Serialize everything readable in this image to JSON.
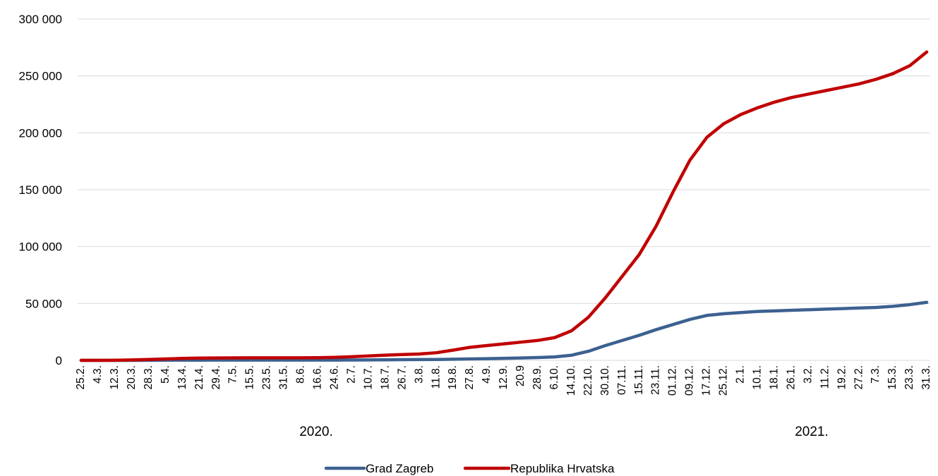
{
  "chart_data": {
    "type": "line",
    "title": "",
    "xlabel": "",
    "ylabel": "",
    "ylim": [
      0,
      300000
    ],
    "y_ticks": [
      0,
      50000,
      100000,
      150000,
      200000,
      250000,
      300000
    ],
    "y_tick_labels": [
      "0",
      "50 000",
      "100 000",
      "150 000",
      "200 000",
      "250 000",
      "300 000"
    ],
    "grid": "horizontal",
    "legend_position": "bottom-center",
    "x_tick_labels": [
      "25.2.",
      "4.3.",
      "12.3.",
      "20.3.",
      "28.3.",
      "5.4.",
      "13.4.",
      "21.4.",
      "29.4.",
      "7.5.",
      "15.5.",
      "23.5.",
      "31.5.",
      "8.6.",
      "16.6.",
      "24.6.",
      "2.7.",
      "10.7.",
      "18.7.",
      "26.7.",
      "3.8.",
      "11.8.",
      "19.8.",
      "27.8.",
      "4.9.",
      "12.9.",
      "20.9",
      "28.9.",
      "6.10.",
      "14.10.",
      "22.10.",
      "30.10.",
      "07.11.",
      "15.11.",
      "23.11.",
      "01.12.",
      "09.12.",
      "17.12.",
      "25.12.",
      "2.1.",
      "10.1.",
      "18.1.",
      "26.1.",
      "3.2.",
      "11.2.",
      "19.2.",
      "27.2.",
      "7.3.",
      "15.3.",
      "23.3.",
      "31.3."
    ],
    "year_labels": [
      "2020.",
      "2021."
    ],
    "series": [
      {
        "name": "Grad Zagreb",
        "color": "#3c6190",
        "values": [
          0,
          0,
          10,
          40,
          80,
          120,
          150,
          180,
          200,
          210,
          210,
          210,
          210,
          215,
          220,
          250,
          300,
          400,
          500,
          600,
          700,
          800,
          1000,
          1200,
          1500,
          1800,
          2100,
          2500,
          3000,
          4500,
          8000,
          13000,
          17500,
          22000,
          27000,
          31500,
          36000,
          39500,
          41000,
          42000,
          43000,
          43500,
          44000,
          44500,
          45000,
          45500,
          46000,
          46500,
          47500,
          49000,
          51000
        ]
      },
      {
        "name": "Republika Hrvatska",
        "color": "#c00000",
        "values": [
          0,
          10,
          100,
          400,
          800,
          1200,
          1700,
          2000,
          2100,
          2200,
          2240,
          2250,
          2250,
          2260,
          2300,
          2600,
          3200,
          3900,
          4600,
          5100,
          5600,
          6700,
          9000,
          11500,
          13000,
          14500,
          16000,
          17500,
          20000,
          26000,
          38000,
          55000,
          74000,
          93000,
          118000,
          148000,
          176000,
          196000,
          208000,
          216000,
          222000,
          227000,
          231000,
          234000,
          237000,
          240000,
          243000,
          247000,
          252000,
          259000,
          271000
        ]
      }
    ]
  }
}
